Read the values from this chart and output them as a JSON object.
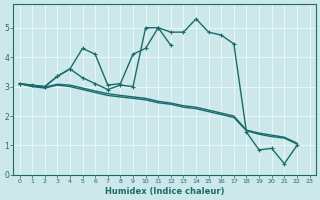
{
  "xlabel": "Humidex (Indice chaleur)",
  "xlim": [
    -0.5,
    23.5
  ],
  "ylim": [
    0,
    5.8
  ],
  "yticks": [
    0,
    1,
    2,
    3,
    4,
    5
  ],
  "xticks": [
    0,
    1,
    2,
    3,
    4,
    5,
    6,
    7,
    8,
    9,
    10,
    11,
    12,
    13,
    14,
    15,
    16,
    17,
    18,
    19,
    20,
    21,
    22,
    23
  ],
  "bg_color": "#cde8ea",
  "grid_color": "#e8f8f8",
  "line_color": "#1a6b6b",
  "line0": {
    "x": [
      0,
      1,
      2,
      3,
      4,
      5,
      6,
      7,
      8,
      9,
      10,
      11,
      12,
      13,
      14,
      15,
      16,
      17,
      18,
      19,
      20,
      21,
      22
    ],
    "y": [
      3.1,
      3.05,
      3.0,
      3.35,
      3.6,
      3.3,
      3.1,
      2.9,
      3.05,
      3.0,
      5.0,
      5.0,
      4.85,
      4.85,
      5.3,
      4.85,
      4.75,
      4.45,
      1.45,
      0.85,
      0.9,
      0.38,
      1.0
    ],
    "marker": true
  },
  "line1": {
    "x": [
      0,
      1,
      2,
      3,
      4,
      5,
      6,
      7,
      8,
      9,
      10,
      11,
      12,
      13,
      14,
      15,
      16,
      17,
      18,
      19,
      20,
      21,
      22
    ],
    "y": [
      3.1,
      3.0,
      2.95,
      3.05,
      3.0,
      2.9,
      2.8,
      2.7,
      2.65,
      2.6,
      2.55,
      2.45,
      2.4,
      2.3,
      2.25,
      2.15,
      2.05,
      1.95,
      1.5,
      1.38,
      1.3,
      1.25,
      1.05
    ],
    "marker": false
  },
  "line2": {
    "x": [
      0,
      1,
      2,
      3,
      4,
      5,
      6,
      7,
      8,
      9,
      10,
      11,
      12,
      13,
      14,
      15,
      16,
      17,
      18,
      19,
      20,
      21,
      22
    ],
    "y": [
      3.1,
      3.02,
      2.98,
      3.08,
      3.05,
      2.95,
      2.85,
      2.76,
      2.7,
      2.65,
      2.6,
      2.5,
      2.44,
      2.35,
      2.3,
      2.2,
      2.1,
      2.0,
      1.52,
      1.42,
      1.35,
      1.28,
      1.08
    ],
    "marker": false
  },
  "line3": {
    "x": [
      0,
      2,
      3,
      4,
      5,
      6,
      7,
      8,
      9,
      10,
      11,
      12
    ],
    "y": [
      3.1,
      3.0,
      3.35,
      3.6,
      4.3,
      4.1,
      3.05,
      3.1,
      4.1,
      4.3,
      5.0,
      4.4
    ],
    "marker": true
  }
}
